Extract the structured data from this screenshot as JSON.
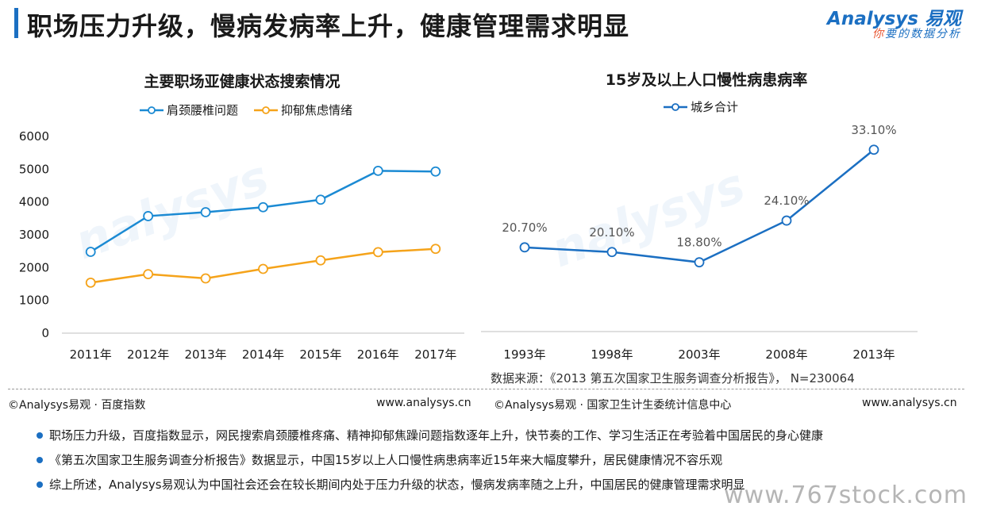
{
  "header": {
    "title": "职场压力升级，慢病发病率上升，健康管理需求明显",
    "logo_main": "Analysys 易观",
    "logo_sub_accent": "你",
    "logo_sub_rest": "要的数据分析"
  },
  "colors": {
    "blue": "#1b8ad3",
    "orange": "#f5a31a",
    "dark_blue": "#1b6fc2"
  },
  "chart_data": [
    {
      "type": "line",
      "title": "主要职场亚健康状态搜索情况",
      "categories": [
        "2011年",
        "2012年",
        "2013年",
        "2014年",
        "2015年",
        "2016年",
        "2017年"
      ],
      "series": [
        {
          "name": "肩颈腰椎问题",
          "color": "#1b8ad3",
          "values": [
            2480,
            3570,
            3690,
            3840,
            4070,
            4950,
            4930
          ]
        },
        {
          "name": "抑郁焦虑情绪",
          "color": "#f5a31a",
          "values": [
            1540,
            1800,
            1670,
            1960,
            2220,
            2470,
            2570
          ]
        }
      ],
      "yticks": [
        "0",
        "1000",
        "2000",
        "3000",
        "4000",
        "5000",
        "6000"
      ],
      "ylim": [
        0,
        6000
      ],
      "legend": "top",
      "grid": false
    },
    {
      "type": "line",
      "title": "15岁及以上人口慢性病患病率",
      "categories": [
        "1993年",
        "1998年",
        "2003年",
        "2008年",
        "2013年"
      ],
      "series": [
        {
          "name": "城乡合计",
          "color": "#1b6fc2",
          "values": [
            20.7,
            20.1,
            18.8,
            24.1,
            33.1
          ],
          "labels": [
            "20.70%",
            "20.10%",
            "18.80%",
            "24.10%",
            "33.10%"
          ]
        }
      ],
      "legend": "top",
      "grid": false
    }
  ],
  "source": "数据来源：《2013 第五次国家卫生服务调查分析报告》， N=230064",
  "footer": {
    "left_copyright": "©Analysys易观 · 百度指数",
    "left_url": "www.analysys.cn",
    "right_copyright": "©Analysys易观 · 国家卫生计生委统计信息中心",
    "right_url": "www.analysys.cn"
  },
  "bullets": [
    "职场压力升级，百度指数显示，网民搜索肩颈腰椎疼痛、精神抑郁焦躁问题指数逐年上升，快节奏的工作、学习生活正在考验着中国居民的身心健康",
    "《第五次国家卫生服务调查分析报告》数据显示，中国15岁以上人口慢性病患病率近15年来大幅度攀升，居民健康情况不容乐观",
    "综上所述，Analysys易观认为中国社会还会在较长期间内处于压力升级的状态，慢病发病率随之上升，中国居民的健康管理需求明显"
  ],
  "watermark": "www.767stock.com"
}
